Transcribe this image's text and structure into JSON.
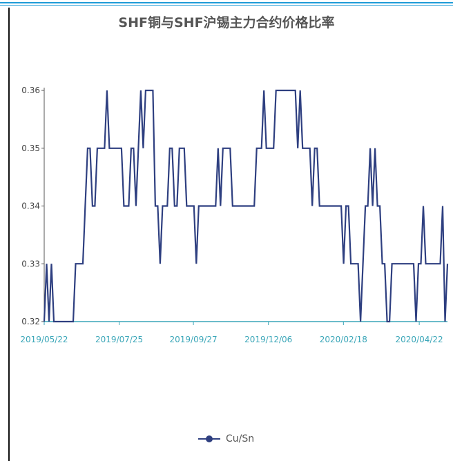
{
  "chart_data": {
    "type": "line",
    "title": "SHF铜与SHF沪锡主力合约价格比率",
    "xlabel": "",
    "ylabel": "",
    "ylim": [
      0.32,
      0.36
    ],
    "yticks": [
      "0.32",
      "0.33",
      "0.34",
      "0.35",
      "0.36"
    ],
    "xticks": [
      "2019/05/22",
      "2019/07/25",
      "2019/09/27",
      "2019/12/06",
      "2020/02/18",
      "2020/04/22"
    ],
    "grid": false,
    "legend_position": "bottom",
    "series": [
      {
        "name": "Cu/Sn",
        "color": "#2e3f80",
        "values": [
          0.32,
          0.33,
          0.32,
          0.33,
          0.32,
          0.32,
          0.32,
          0.32,
          0.32,
          0.32,
          0.32,
          0.32,
          0.32,
          0.33,
          0.33,
          0.33,
          0.33,
          0.34,
          0.35,
          0.35,
          0.34,
          0.34,
          0.35,
          0.35,
          0.35,
          0.35,
          0.36,
          0.35,
          0.35,
          0.35,
          0.35,
          0.35,
          0.35,
          0.34,
          0.34,
          0.34,
          0.35,
          0.35,
          0.34,
          0.35,
          0.36,
          0.35,
          0.36,
          0.36,
          0.36,
          0.36,
          0.34,
          0.34,
          0.33,
          0.34,
          0.34,
          0.34,
          0.35,
          0.35,
          0.34,
          0.34,
          0.35,
          0.35,
          0.35,
          0.34,
          0.34,
          0.34,
          0.34,
          0.33,
          0.34,
          0.34,
          0.34,
          0.34,
          0.34,
          0.34,
          0.34,
          0.34,
          0.35,
          0.34,
          0.35,
          0.35,
          0.35,
          0.35,
          0.34,
          0.34,
          0.34,
          0.34,
          0.34,
          0.34,
          0.34,
          0.34,
          0.34,
          0.34,
          0.35,
          0.35,
          0.35,
          0.36,
          0.35,
          0.35,
          0.35,
          0.35,
          0.36,
          0.36,
          0.36,
          0.36,
          0.36,
          0.36,
          0.36,
          0.36,
          0.36,
          0.35,
          0.36,
          0.35,
          0.35,
          0.35,
          0.35,
          0.34,
          0.35,
          0.35,
          0.34,
          0.34,
          0.34,
          0.34,
          0.34,
          0.34,
          0.34,
          0.34,
          0.34,
          0.34,
          0.33,
          0.34,
          0.34,
          0.33,
          0.33,
          0.33,
          0.33,
          0.32,
          0.33,
          0.34,
          0.34,
          0.35,
          0.34,
          0.35,
          0.34,
          0.34,
          0.33,
          0.33,
          0.32,
          0.32,
          0.33,
          0.33,
          0.33,
          0.33,
          0.33,
          0.33,
          0.33,
          0.33,
          0.33,
          0.33,
          0.32,
          0.33,
          0.33,
          0.34,
          0.33,
          0.33,
          0.33,
          0.33,
          0.33,
          0.33,
          0.33,
          0.34,
          0.32,
          0.33
        ]
      }
    ]
  }
}
